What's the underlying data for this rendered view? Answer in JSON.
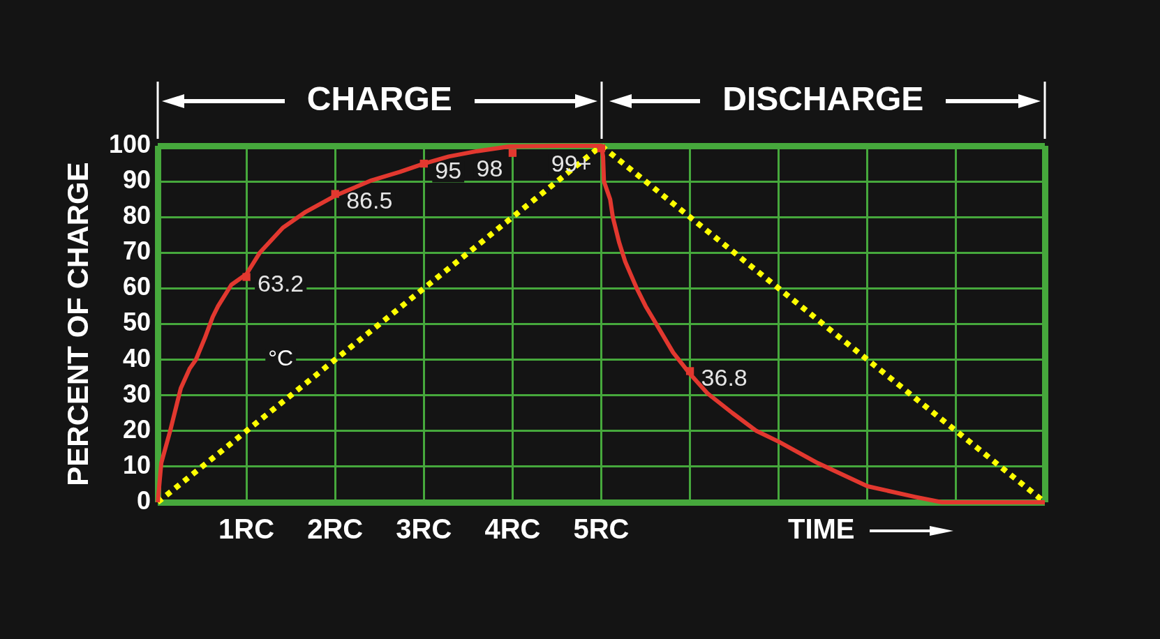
{
  "chart_data": {
    "type": "line",
    "xlabel": "TIME",
    "ylabel": "PERCENT OF CHARGE",
    "annotations": [
      "CHARGE",
      "DISCHARGE"
    ],
    "xlim": [
      0,
      10
    ],
    "ylim": [
      0,
      100
    ],
    "xticks": [
      {
        "value": 0,
        "label": null
      },
      {
        "value": 1,
        "label": "1RC"
      },
      {
        "value": 2,
        "label": "2RC"
      },
      {
        "value": 3,
        "label": "3RC"
      },
      {
        "value": 4,
        "label": "4RC"
      },
      {
        "value": 5,
        "label": "5RC"
      },
      {
        "value": 6,
        "label": null
      },
      {
        "value": 7,
        "label": null
      },
      {
        "value": 8,
        "label": null
      },
      {
        "value": 9,
        "label": null
      },
      {
        "value": 10,
        "label": null
      }
    ],
    "yticks": [
      0,
      10,
      20,
      30,
      40,
      50,
      60,
      70,
      80,
      90,
      100
    ],
    "grid": true,
    "series": [
      {
        "name": "°C",
        "color": "#ffff00",
        "line_style": "dotted",
        "marker": "none",
        "x": [
          0,
          5,
          10
        ],
        "values": [
          0,
          100,
          0
        ]
      },
      {
        "color": "#e2382f",
        "line_style": "solid",
        "marker": "none",
        "x": [
          0,
          0.04,
          0.14,
          0.19,
          0.26,
          0.36,
          0.43,
          0.53,
          0.62,
          0.68,
          0.83,
          1,
          1.15,
          1.41,
          1.67,
          2,
          2.41,
          2.73,
          3,
          3.28,
          3.6,
          3.96,
          4.5,
          5,
          5.02,
          5.03,
          5.1,
          5.13,
          5.2,
          5.27,
          5.4,
          5.5,
          5.62,
          5.81,
          6,
          6.2,
          6.48,
          6.75,
          7,
          7.44,
          8,
          8.54,
          8.84,
          10
        ],
        "values": [
          0,
          11,
          20,
          25,
          32,
          37.5,
          40,
          46,
          52,
          55,
          61,
          64,
          70,
          77,
          81.5,
          86,
          90.3,
          92.7,
          95,
          97,
          98.5,
          99.8,
          100,
          100,
          97,
          90,
          85,
          80,
          73,
          67.5,
          60,
          55,
          50,
          42,
          36,
          30.5,
          25,
          20,
          17,
          11,
          4.5,
          1.5,
          0,
          0
        ]
      },
      {
        "type": "scatter",
        "color": "#e2382f",
        "marker": "square",
        "x": [
          1,
          2,
          3,
          4,
          5,
          6
        ],
        "values": [
          63.2,
          86.5,
          95,
          98,
          99.3,
          36.8
        ],
        "value_labels": [
          "63.2",
          "86.5",
          "95",
          "98",
          "99+",
          "36.8"
        ]
      }
    ]
  }
}
